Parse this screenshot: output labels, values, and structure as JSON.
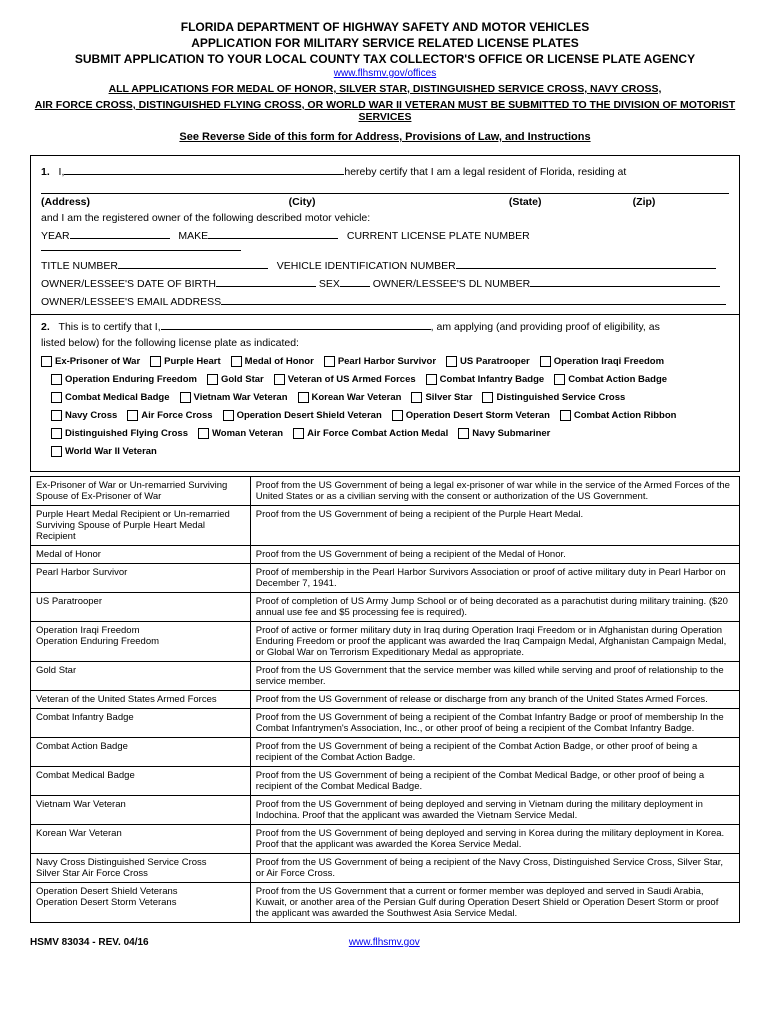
{
  "header": {
    "dept": "FLORIDA DEPARTMENT OF HIGHWAY SAFETY AND MOTOR VEHICLES",
    "appTitle": "APPLICATION FOR MILITARY SERVICE RELATED LICENSE PLATES",
    "submit": "SUBMIT APPLICATION TO YOUR LOCAL COUNTY TAX COLLECTOR'S OFFICE OR LICENSE PLATE AGENCY",
    "link": "www.flhsmv.gov/offices",
    "notice1": "ALL APPLICATIONS FOR MEDAL OF HONOR, SILVER STAR, DISTINGUISHED SERVICE CROSS, NAVY CROSS,",
    "notice2": "AIR FORCE CROSS, DISTINGUISHED FLYING CROSS, OR WORLD WAR II VETERAN MUST BE SUBMITTED TO THE DIVISION OF MOTORIST SERVICES",
    "reverse": "See Reverse Side of this form for Address, Provisions of Law, and Instructions"
  },
  "section1": {
    "num": "1.",
    "iPrefix": "I,",
    "certify": "hereby certify that I am a legal resident of Florida, residing at",
    "addr": "(Address)",
    "city": "(City)",
    "state": "(State)",
    "zip": "(Zip)",
    "owner": "and I am the registered owner of the following described motor vehicle:",
    "year": "YEAR",
    "make": "MAKE",
    "plate": "CURRENT LICENSE PLATE NUMBER",
    "titleNum": "TITLE NUMBER",
    "vin": "VEHICLE IDENTIFICATION NUMBER",
    "dob": "OWNER/LESSEE'S DATE OF BIRTH",
    "sex": "SEX",
    "dl": "OWNER/LESSEE'S DL NUMBER",
    "email": "OWNER/LESSEE'S EMAIL ADDRESS"
  },
  "section2": {
    "num": "2.",
    "intro": "This is to certify that I,",
    "applying": ", am applying (and providing proof of eligibility, as",
    "listed": "listed below) for the following license plate as indicated:"
  },
  "plates": [
    "Ex-Prisoner of War",
    "Purple Heart",
    "Medal of Honor",
    "Pearl Harbor Survivor",
    "US Paratrooper",
    "Operation Iraqi Freedom",
    "Operation Enduring Freedom",
    "Gold Star",
    "Veteran of US Armed Forces",
    "Combat Infantry Badge",
    "Combat Action Badge",
    "Combat Medical Badge",
    "Vietnam War Veteran",
    "Korean War Veteran",
    "Silver Star",
    "Distinguished Service Cross",
    "Navy Cross",
    "Air Force Cross",
    "Operation Desert Shield Veteran",
    "Operation Desert Storm Veteran",
    "Combat Action Ribbon",
    "Distinguished Flying Cross",
    "Woman Veteran",
    "Air Force Combat Action Medal",
    "Navy Submariner",
    "World War II Veteran"
  ],
  "proofRows": [
    {
      "c": "Ex-Prisoner of War or Un-remarried Surviving Spouse of Ex-Prisoner of War",
      "p": "Proof from the US Government of being a legal ex-prisoner of war while in the service of the Armed Forces of the United States or as a civilian serving with the consent or authorization of the US Government."
    },
    {
      "c": "Purple Heart Medal Recipient or Un-remarried  Surviving Spouse of Purple Heart Medal Recipient",
      "p": "Proof from the US Government of being a recipient of the Purple Heart Medal."
    },
    {
      "c": "Medal of Honor",
      "p": "Proof from the US Government of being a recipient of the Medal of Honor."
    },
    {
      "c": "Pearl Harbor Survivor",
      "p": "Proof of membership in the Pearl Harbor Survivors Association or proof of active military duty in Pearl Harbor on December 7, 1941."
    },
    {
      "c": "US Paratrooper",
      "p": "Proof of completion of US Army Jump School or of being decorated as a parachutist during military training. ($20 annual use fee and $5 processing fee is required)."
    },
    {
      "c": "Operation Iraqi Freedom\nOperation Enduring Freedom",
      "p": "Proof of active or former military duty in Iraq during Operation Iraqi Freedom or in Afghanistan during Operation Enduring Freedom or proof the applicant was awarded the Iraq Campaign Medal, Afghanistan Campaign Medal, or Global War on Terrorism Expeditionary Medal as appropriate."
    },
    {
      "c": "Gold Star",
      "p": "Proof from the US Government that the service member was killed while serving and proof of relationship to the service member."
    },
    {
      "c": "Veteran of the United States Armed Forces",
      "p": "Proof from the US Government of release or discharge from any branch of the United States Armed Forces."
    },
    {
      "c": "Combat Infantry Badge",
      "p": "Proof from the US Government of being a recipient of the Combat Infantry Badge or proof of membership In the Combat Infantrymen's Association, Inc., or other proof of being a recipient of the Combat Infantry Badge."
    },
    {
      "c": "Combat Action Badge",
      "p": "Proof from the US Government of being a recipient of the Combat Action Badge, or other proof of being a recipient of the Combat Action Badge."
    },
    {
      "c": "Combat Medical Badge",
      "p": "Proof from the US Government of being a recipient of the Combat Medical Badge, or other proof of being a recipient of the Combat Medical Badge."
    },
    {
      "c": "Vietnam War Veteran",
      "p": "Proof from the US Government of being deployed and serving in Vietnam during the military deployment in Indochina. Proof that the applicant was awarded the Vietnam Service Medal."
    },
    {
      "c": "Korean War Veteran",
      "p": "Proof from the US Government of being deployed and serving in Korea during the military deployment in Korea. Proof that the applicant was awarded the Korea Service Medal."
    },
    {
      "c": "Navy Cross      Distinguished Service Cross\nSilver Star       Air Force Cross",
      "p": "Proof from the US Government of being a recipient of the Navy Cross, Distinguished Service Cross, Silver Star, or Air Force Cross."
    },
    {
      "c": "Operation Desert Shield Veterans\nOperation Desert Storm Veterans",
      "p": "Proof from the US Government that a current or former member was deployed and served in Saudi Arabia, Kuwait, or another area of the Persian Gulf during Operation Desert Shield or Operation Desert Storm or proof the applicant was awarded the Southwest Asia Service Medal."
    }
  ],
  "footer": {
    "formNum": "HSMV 83034 - REV. 04/16",
    "url": "www.flhsmv.gov"
  }
}
